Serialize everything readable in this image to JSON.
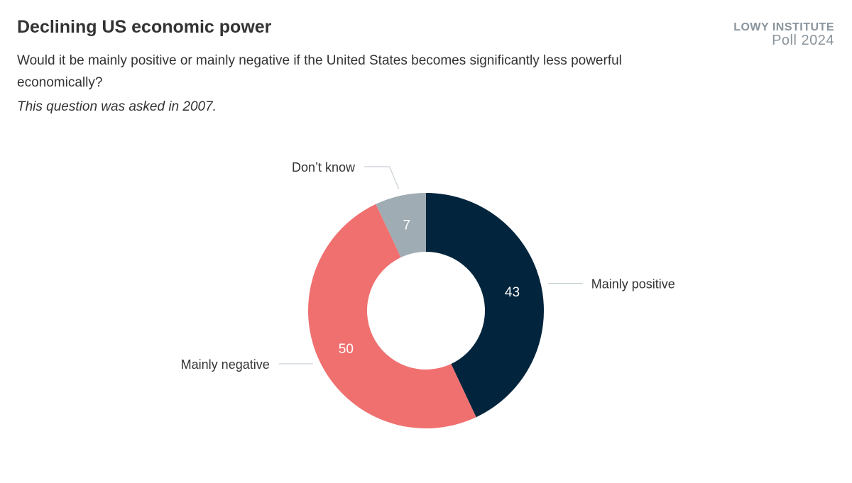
{
  "title": "Declining US economic power",
  "subtitle": "Would it be mainly positive or mainly negative if the United States becomes significantly less powerful economically?",
  "note": "This question was asked in 2007.",
  "logo": {
    "line1": "LOWY INSTITUTE",
    "line2": "Poll 2024"
  },
  "chart_data": {
    "type": "pie",
    "donut": true,
    "categories": [
      "Mainly positive",
      "Mainly negative",
      "Don’t know"
    ],
    "values": [
      43,
      50,
      7
    ],
    "colors": [
      "#02253d",
      "#f07070",
      "#9facb3"
    ],
    "start": "top, clockwise"
  }
}
